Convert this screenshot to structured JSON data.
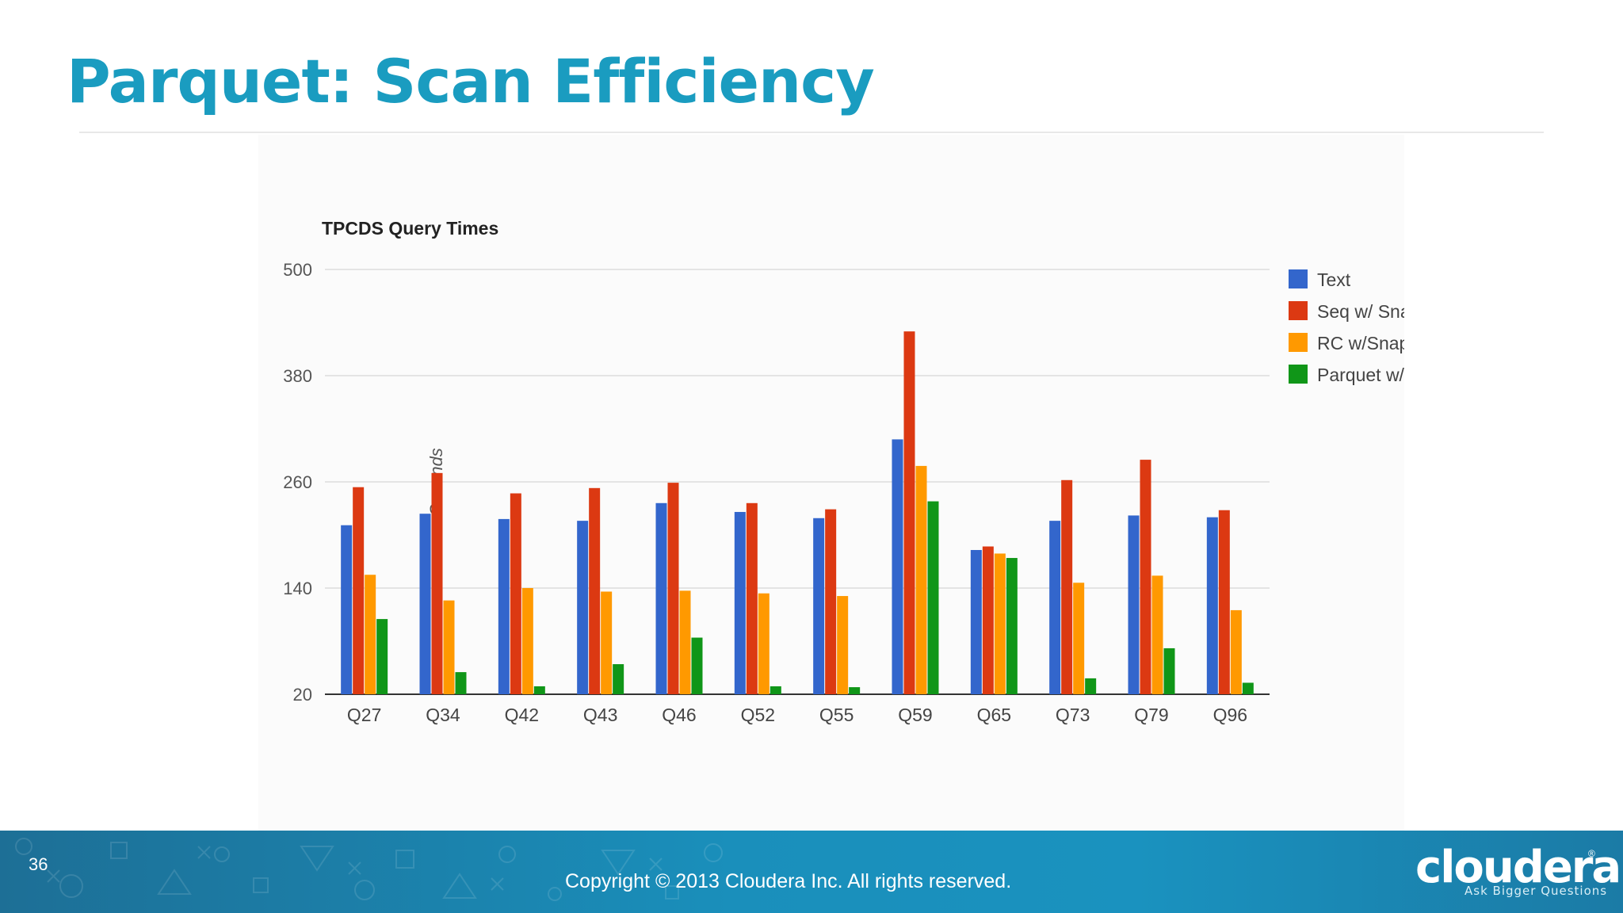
{
  "slide": {
    "title": "Parquet: Scan Efficiency",
    "number": "36",
    "copyright": "Copyright © 2013 Cloudera Inc. All rights reserved.",
    "logo": "cloudera",
    "logo_mark": "®",
    "tagline": "Ask Bigger Questions",
    "colors": {
      "title": "#1a9cc0",
      "footer": "#1a8fbb"
    }
  },
  "chart_data": {
    "type": "bar",
    "title": "TPCDS Query Times",
    "xlabel": "",
    "ylabel": "Seconds",
    "ylim": [
      20,
      500
    ],
    "yticks": [
      20,
      140,
      260,
      380,
      500
    ],
    "grid": true,
    "legend_position": "right",
    "categories": [
      "Q27",
      "Q34",
      "Q42",
      "Q43",
      "Q46",
      "Q52",
      "Q55",
      "Q59",
      "Q65",
      "Q73",
      "Q79",
      "Q96"
    ],
    "series": [
      {
        "name": "Text",
        "color": "#3366cc",
        "values": [
          211,
          224,
          218,
          216,
          236,
          226,
          219,
          308,
          183,
          216,
          222,
          220
        ]
      },
      {
        "name": "Seq w/ Snappy",
        "color": "#dc3912",
        "values": [
          254,
          270,
          247,
          253,
          259,
          236,
          229,
          430,
          187,
          262,
          285,
          228
        ]
      },
      {
        "name": "RC w/Snappy",
        "color": "#ff9900",
        "values": [
          155,
          126,
          140,
          136,
          137,
          134,
          131,
          278,
          179,
          146,
          154,
          115
        ]
      },
      {
        "name": "Parquet w/Snappy",
        "color": "#109618",
        "values": [
          105,
          45,
          29,
          54,
          84,
          29,
          28,
          238,
          174,
          38,
          72,
          33
        ]
      }
    ]
  }
}
